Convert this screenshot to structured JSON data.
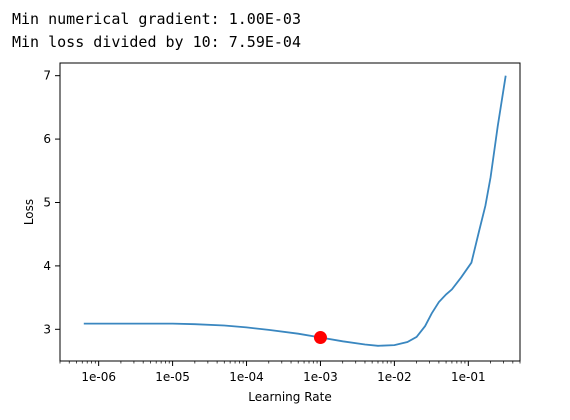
{
  "output": {
    "line1": "Min numerical gradient: 1.00E-03",
    "line2": "Min loss divided by 10: 7.59E-04"
  },
  "chart_data": {
    "type": "line",
    "xlabel": "Learning Rate",
    "ylabel": "Loss",
    "xscale": "log",
    "xlim": [
      3e-07,
      0.5
    ],
    "ylim": [
      2.5,
      7.2
    ],
    "xticks": [
      {
        "value": 1e-06,
        "label": "1e-06"
      },
      {
        "value": 1e-05,
        "label": "1e-05"
      },
      {
        "value": 0.0001,
        "label": "1e-04"
      },
      {
        "value": 0.001,
        "label": "1e-03"
      },
      {
        "value": 0.01,
        "label": "1e-02"
      },
      {
        "value": 0.1,
        "label": "1e-01"
      }
    ],
    "yticks": [
      {
        "value": 3,
        "label": "3"
      },
      {
        "value": 4,
        "label": "4"
      },
      {
        "value": 5,
        "label": "5"
      },
      {
        "value": 6,
        "label": "6"
      },
      {
        "value": 7,
        "label": "7"
      }
    ],
    "grid": false,
    "line_color": "#3a87c0",
    "marker_color": "#ff0000",
    "series": [
      {
        "x": [
          6.3e-07,
          1e-06,
          2e-06,
          3e-06,
          5e-06,
          1e-05,
          2e-05,
          5e-05,
          0.0001,
          0.0002,
          0.0005,
          0.001,
          0.002,
          0.004,
          0.006,
          0.01,
          0.015,
          0.02,
          0.026,
          0.032,
          0.04,
          0.05,
          0.06,
          0.08,
          0.11,
          0.14,
          0.17,
          0.2,
          0.25,
          0.32
        ],
        "y": [
          3.09,
          3.09,
          3.09,
          3.09,
          3.09,
          3.09,
          3.08,
          3.06,
          3.03,
          2.99,
          2.93,
          2.87,
          2.81,
          2.76,
          2.74,
          2.75,
          2.8,
          2.88,
          3.05,
          3.25,
          3.43,
          3.55,
          3.63,
          3.82,
          4.05,
          4.55,
          4.95,
          5.4,
          6.2,
          7.0
        ]
      }
    ],
    "marker": {
      "x": 0.001,
      "y": 2.87
    }
  }
}
